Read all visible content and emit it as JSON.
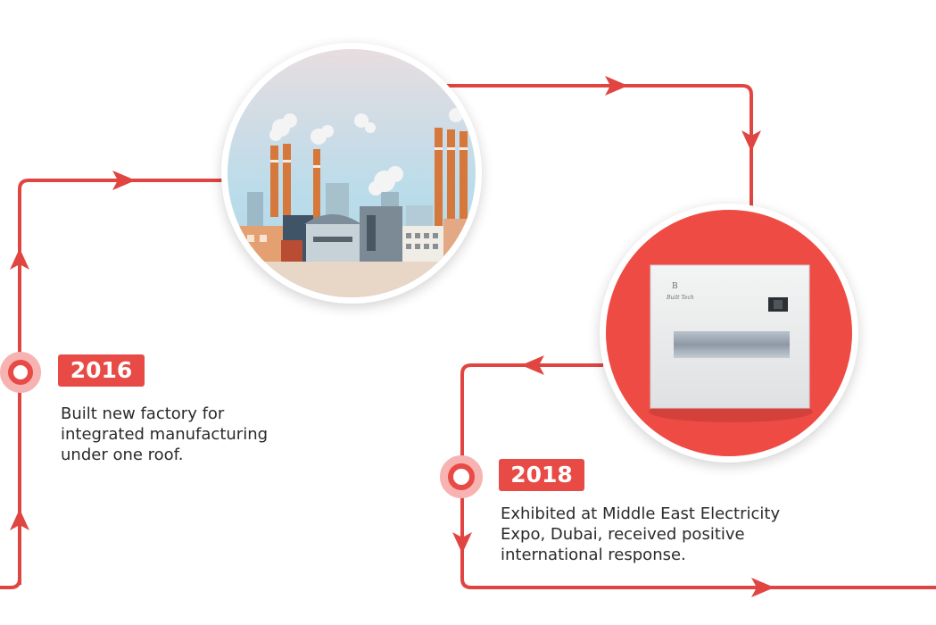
{
  "theme": {
    "accent": "#e84a46",
    "line": "#e04541",
    "text": "#2a2a2a"
  },
  "milestones": [
    {
      "year": "2016",
      "description": "Built new factory for\nintegrated manufacturing\nunder one roof.",
      "image_icon": "factory-illustration"
    },
    {
      "year": "2018",
      "description": "Exhibited at Middle East Electricity\nExpo, Dubai, received positive\ninternational response.",
      "image_icon": "distribution-board-product",
      "product_brand": "Built Tech"
    }
  ]
}
